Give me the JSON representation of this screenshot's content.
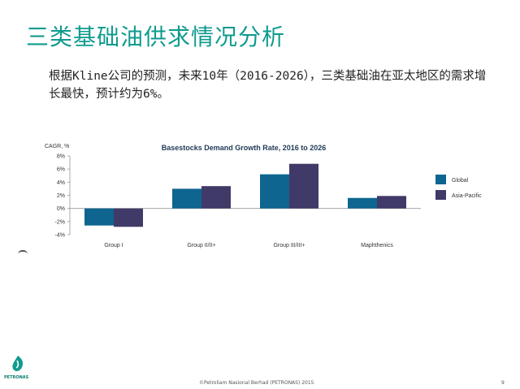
{
  "slide": {
    "title": "三类基础油供求情况分析",
    "text": "根据Kline公司的预测，未来10年（2016-2026），三类基础油在亚太地区的需求增长最快，预计约为6%。"
  },
  "footer": {
    "copyright": "©Petroliam Nasional Berhad (PETRONAS) 2015",
    "page": "9"
  },
  "logo": {
    "text": "PETRONAS",
    "icon": "petronas-logo-icon"
  },
  "colors": {
    "title": "#0f9b8e",
    "global": "#0e6590",
    "asia_pacific": "#403a68"
  },
  "chart_data": {
    "type": "bar",
    "title": "Basestocks Demand Growth Rate, 2016 to 2026",
    "ylabel": "CAGR, %",
    "xlabel": "",
    "categories": [
      "Group I",
      "Group II/II+",
      "Group III/III+",
      "Maphthenics"
    ],
    "series": [
      {
        "name": "Global",
        "color": "#0e6590",
        "values": [
          -2.6,
          3.0,
          5.2,
          1.6
        ]
      },
      {
        "name": "Asia-Pacific",
        "color": "#403a68",
        "values": [
          -2.8,
          3.4,
          6.8,
          1.9
        ]
      }
    ],
    "ylim": [
      -4,
      8
    ],
    "yticks": [
      -4,
      -2,
      0,
      2,
      4,
      6,
      8
    ],
    "ytick_labels": [
      "-4%",
      "-2%",
      "0%",
      "2%",
      "4%",
      "6%",
      "8%"
    ],
    "grid": false,
    "legend": "right"
  }
}
